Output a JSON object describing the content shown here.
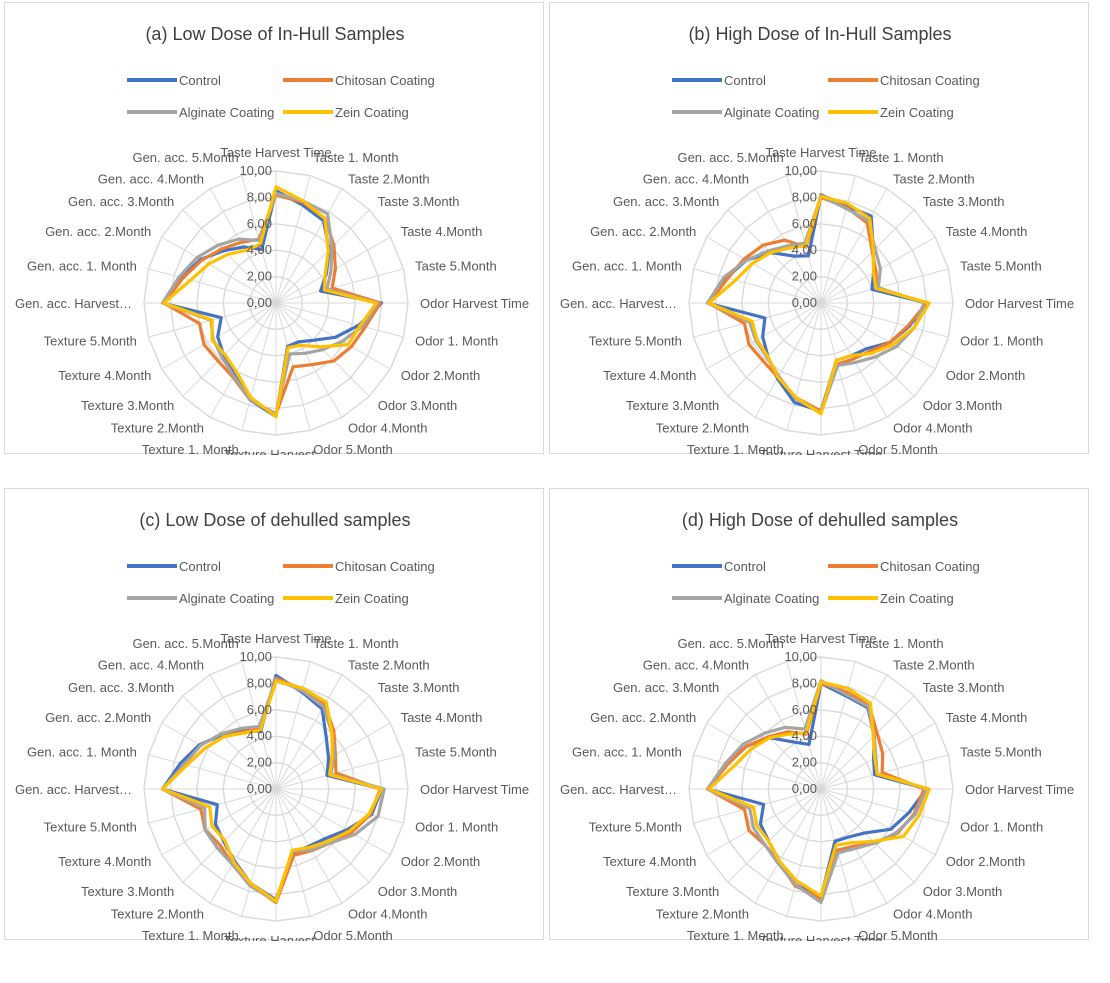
{
  "chart_data": [
    {
      "type": "radar",
      "title": "(a) Low Dose of In-Hull Samples",
      "categories": [
        "Taste Harvest Time",
        "Taste 1. Month",
        "Taste 2.Month",
        "Taste 3.Month",
        "Taste 4.Month",
        "Taste 5.Month",
        "Odor Harvest Time",
        "Odor 1. Month",
        "Odor 2.Month",
        "Odor 3.Month",
        "Odor 4.Month",
        "Odor 5.Month",
        "Texture Harvest…",
        "Texture 1. Month",
        "Texture 2.Month",
        "Texture 3.Month",
        "Texture 4.Month",
        "Texture 5.Month",
        "Gen. acc. Harvest…",
        "Gen. acc. 1. Month",
        "Gen. acc. 2.Month",
        "Gen. acc. 3.Month",
        "Gen. acc. 4.Month",
        "Gen. acc. 5.Month"
      ],
      "ticks": [
        "0,00",
        "2,00",
        "4,00",
        "6,00",
        "8,00",
        "10,00"
      ],
      "rmax": 10,
      "series": [
        {
          "name": "Control",
          "color": "#4472C4",
          "values": [
            8.5,
            7.7,
            7.2,
            5.7,
            4.4,
            3.5,
            8.0,
            6.5,
            5.2,
            4.0,
            3.4,
            3.4,
            8.6,
            7.6,
            6.3,
            5.6,
            5.1,
            4.3,
            8.6,
            7.4,
            6.6,
            5.6,
            4.9,
            4.2
          ]
        },
        {
          "name": "Chitosan Coating",
          "color": "#ED7D31",
          "values": [
            8.2,
            7.9,
            7.4,
            6.2,
            5.2,
            4.4,
            7.9,
            7.0,
            6.6,
            6.2,
            5.4,
            5.0,
            8.4,
            7.6,
            6.5,
            6.2,
            6.3,
            6.0,
            8.5,
            7.3,
            6.5,
            5.8,
            5.3,
            5.0
          ]
        },
        {
          "name": "Alginate Coating",
          "color": "#A5A5A5",
          "values": [
            8.3,
            8.0,
            7.8,
            6.0,
            4.8,
            4.0,
            7.7,
            6.8,
            5.8,
            5.0,
            4.4,
            4.0,
            8.4,
            7.6,
            6.4,
            5.8,
            5.5,
            5.1,
            8.6,
            7.6,
            6.9,
            6.2,
            5.6,
            4.9
          ]
        },
        {
          "name": "Zein Coating",
          "color": "#FFC000",
          "values": [
            8.8,
            8.0,
            7.4,
            5.6,
            4.3,
            3.8,
            7.6,
            6.6,
            6.3,
            4.7,
            3.7,
            3.5,
            8.6,
            7.4,
            6.0,
            5.5,
            5.6,
            5.0,
            8.5,
            6.7,
            5.9,
            5.2,
            4.6,
            4.6
          ]
        }
      ]
    },
    {
      "type": "radar",
      "title": "(b) High Dose of In-Hull Samples",
      "categories": [
        "Taste Harvest Time",
        "Taste 1. Month",
        "Taste 2.Month",
        "Taste 3.Month",
        "Taste 4.Month",
        "Taste 5.Month",
        "Odor Harvest Time",
        "Odor 1. Month",
        "Odor 2.Month",
        "Odor 3.Month",
        "Odor 4.Month",
        "Odor 5.Month",
        "Texture Harvest Time",
        "Texture 1. Month",
        "Texture 2.Month",
        "Texture 3.Month",
        "Texture 4.Month",
        "Texture 5.Month",
        "Gen. acc. Harvest…",
        "Gen. acc. 1. Month",
        "Gen. acc. 2.Month",
        "Gen. acc. 3.Month",
        "Gen. acc. 4.Month",
        "Gen. acc. 5.Month"
      ],
      "ticks": [
        "0,00",
        "2,00",
        "4,00",
        "6,00",
        "8,00",
        "10,00"
      ],
      "rmax": 10,
      "series": [
        {
          "name": "Control",
          "color": "#4472C4",
          "values": [
            8.2,
            7.6,
            7.6,
            5.6,
            4.6,
            4.0,
            8.0,
            6.9,
            6.0,
            4.9,
            4.6,
            4.5,
            8.2,
            7.8,
            6.6,
            5.7,
            5.1,
            4.4,
            8.6,
            7.4,
            6.5,
            5.4,
            4.1,
            3.7
          ]
        },
        {
          "name": "Chitosan Coating",
          "color": "#ED7D31",
          "values": [
            8.0,
            7.5,
            7.0,
            5.5,
            4.8,
            4.4,
            8.0,
            6.8,
            6.0,
            5.2,
            4.9,
            4.8,
            8.2,
            7.4,
            6.5,
            6.2,
            6.3,
            6.0,
            8.5,
            7.3,
            6.7,
            6.2,
            5.5,
            4.4
          ]
        },
        {
          "name": "Alginate Coating",
          "color": "#A5A5A5",
          "values": [
            8.1,
            7.4,
            7.2,
            5.8,
            5.2,
            4.5,
            7.8,
            7.3,
            6.6,
            5.8,
            5.2,
            4.9,
            8.3,
            7.5,
            6.4,
            5.8,
            5.7,
            5.6,
            8.6,
            7.6,
            6.5,
            5.6,
            5.0,
            4.7
          ]
        },
        {
          "name": "Zein Coating",
          "color": "#FFC000",
          "values": [
            8.1,
            7.8,
            7.4,
            5.6,
            4.6,
            4.3,
            8.2,
            7.3,
            6.3,
            5.4,
            4.6,
            4.5,
            8.4,
            7.4,
            6.5,
            5.7,
            5.6,
            5.4,
            8.5,
            6.7,
            6.0,
            5.4,
            4.8,
            4.5
          ]
        }
      ]
    },
    {
      "type": "radar",
      "title": "(c) Low Dose of dehulled samples",
      "categories": [
        "Taste Harvest Time",
        "Taste 1. Month",
        "Taste 2.Month",
        "Taste 3.Month",
        "Taste 4.Month",
        "Taste 5.Month",
        "Odor Harvest Time",
        "Odor 1. Month",
        "Odor 2.Month",
        "Odor 3.Month",
        "Odor 4.Month",
        "Odor 5.Month",
        "Texture Harvest…",
        "Texture 1. Month",
        "Texture 2.Month",
        "Texture 3.Month",
        "Texture 4.Month",
        "Texture 5.Month",
        "Gen. acc. Harvest…",
        "Gen. acc. 1. Month",
        "Gen. acc. 2.Month",
        "Gen. acc. 3.Month",
        "Gen. acc. 4.Month",
        "Gen. acc. 5.Month"
      ],
      "ticks": [
        "0,00",
        "2,00",
        "4,00",
        "6,00",
        "8,00",
        "10,00"
      ],
      "rmax": 10,
      "series": [
        {
          "name": "Control",
          "color": "#4472C4",
          "values": [
            8.6,
            7.6,
            7.0,
            5.4,
            4.6,
            4.0,
            8.0,
            7.5,
            6.2,
            5.3,
            5.0,
            5.0,
            8.4,
            7.4,
            6.3,
            5.6,
            5.3,
            4.6,
            8.6,
            7.5,
            6.7,
            5.8,
            5.2,
            4.5
          ]
        },
        {
          "name": "Chitosan Coating",
          "color": "#ED7D31",
          "values": [
            8.4,
            7.8,
            7.4,
            6.2,
            5.2,
            4.7,
            7.9,
            7.4,
            6.6,
            5.8,
            5.4,
            5.2,
            8.6,
            7.5,
            6.6,
            6.0,
            6.2,
            5.9,
            8.6,
            7.0,
            6.2,
            5.6,
            5.0,
            4.7
          ]
        },
        {
          "name": "Alginate Coating",
          "color": "#A5A5A5",
          "values": [
            8.3,
            7.7,
            7.2,
            6.0,
            5.1,
            4.3,
            8.2,
            8.0,
            6.9,
            5.8,
            5.3,
            4.9,
            8.5,
            7.6,
            6.6,
            6.3,
            6.2,
            5.6,
            8.6,
            7.2,
            6.6,
            5.9,
            5.3,
            4.9
          ]
        },
        {
          "name": "Zein Coating",
          "color": "#FFC000",
          "values": [
            8.2,
            7.9,
            7.6,
            6.0,
            4.9,
            4.2,
            8.0,
            7.3,
            6.4,
            5.6,
            5.1,
            4.8,
            8.5,
            7.4,
            6.4,
            5.5,
            5.6,
            5.2,
            8.6,
            7.0,
            6.2,
            5.6,
            4.9,
            4.6
          ]
        }
      ]
    },
    {
      "type": "radar",
      "title": "(d) High Dose of  dehulled samples",
      "categories": [
        "Taste Harvest Time",
        "Taste 1. Month",
        "Taste 2.Month",
        "Taste 3.Month",
        "Taste 4.Month",
        "Taste 5.Month",
        "Odor Harvest Time",
        "Odor 1. Month",
        "Odor 2.Month",
        "Odor 3.Month",
        "Odor 4.Month",
        "Odor 5.Month",
        "Texture Harvest Time",
        "Texture 1. Month",
        "Texture 2.Month",
        "Texture 3.Month",
        "Texture 4.Month",
        "Texture 5.Month",
        "Gen. acc. Harvest…",
        "Gen. acc. 1. Month",
        "Gen. acc. 2.Month",
        "Gen. acc. 3.Month",
        "Gen. acc. 4.Month",
        "Gen. acc. 5.Month"
      ],
      "ticks": [
        "0,00",
        "2,00",
        "4,00",
        "6,00",
        "8,00",
        "10,00"
      ],
      "rmax": 10,
      "series": [
        {
          "name": "Control",
          "color": "#4472C4",
          "values": [
            8.0,
            7.3,
            7.1,
            5.7,
            4.6,
            4.2,
            8.0,
            6.9,
            6.1,
            4.7,
            4.2,
            4.1,
            8.2,
            7.5,
            6.3,
            5.6,
            5.3,
            4.5,
            8.6,
            7.4,
            6.5,
            5.5,
            4.1,
            3.5
          ]
        },
        {
          "name": "Chitosan Coating",
          "color": "#ED7D31",
          "values": [
            8.0,
            7.6,
            7.3,
            6.0,
            5.4,
            4.8,
            7.8,
            7.3,
            6.7,
            5.8,
            5.0,
            4.8,
            8.3,
            7.6,
            6.4,
            6.0,
            6.3,
            6.0,
            8.6,
            7.3,
            6.5,
            5.6,
            5.0,
            4.3
          ]
        },
        {
          "name": "Alginate Coating",
          "color": "#A5A5A5",
          "values": [
            8.2,
            7.4,
            7.2,
            5.7,
            4.8,
            4.4,
            8.0,
            7.4,
            6.6,
            5.8,
            5.2,
            5.0,
            8.6,
            7.5,
            6.5,
            6.0,
            5.9,
            5.6,
            8.6,
            7.5,
            6.8,
            6.0,
            5.4,
            4.7
          ]
        },
        {
          "name": "Zein Coating",
          "color": "#FFC000",
          "values": [
            8.1,
            7.9,
            7.5,
            5.6,
            4.7,
            4.4,
            8.2,
            7.7,
            7.2,
            5.6,
            4.7,
            4.4,
            8.1,
            7.2,
            6.3,
            5.6,
            5.6,
            5.3,
            8.5,
            6.8,
            6.1,
            5.5,
            4.8,
            4.4
          ]
        }
      ]
    }
  ]
}
